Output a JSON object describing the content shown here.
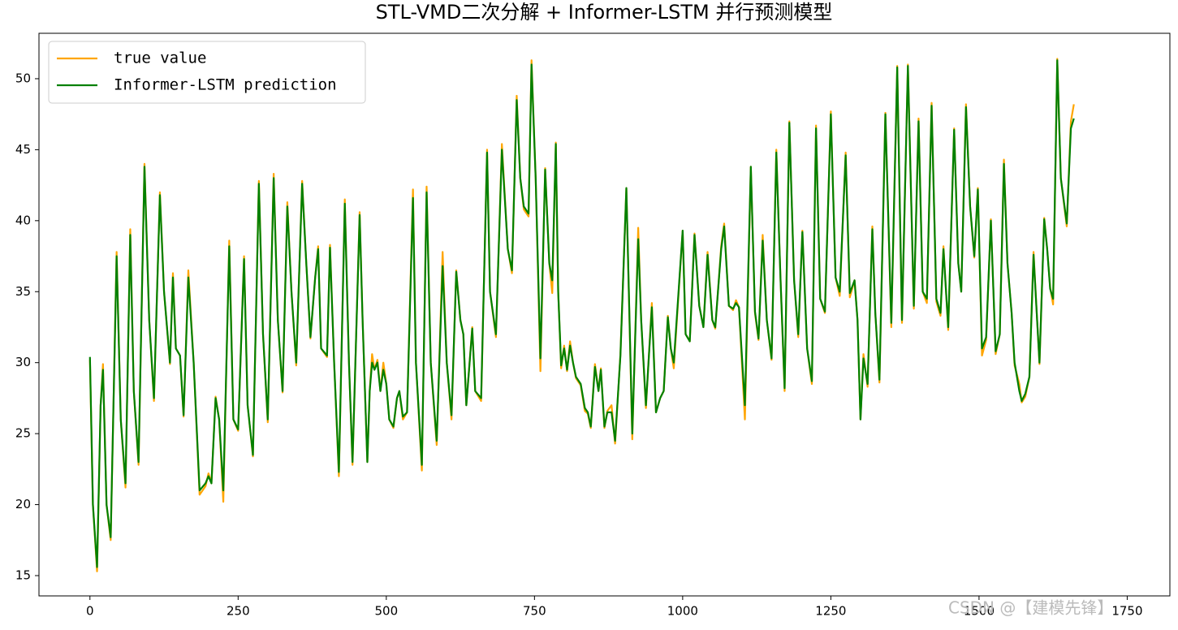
{
  "chart_data": {
    "type": "line",
    "title": "STL-VMD二次分解 + Informer-LSTM 并行预测模型",
    "x": [
      0,
      5,
      12,
      18,
      22,
      28,
      35,
      45,
      52,
      60,
      68,
      74,
      82,
      92,
      100,
      108,
      118,
      125,
      135,
      140,
      145,
      152,
      158,
      166,
      175,
      185,
      195,
      200,
      205,
      212,
      218,
      225,
      235,
      242,
      250,
      260,
      266,
      275,
      285,
      292,
      300,
      310,
      317,
      325,
      333,
      340,
      348,
      358,
      365,
      372,
      380,
      385,
      390,
      400,
      405,
      412,
      420,
      430,
      437,
      443,
      455,
      460,
      468,
      472,
      476,
      480,
      485,
      490,
      495,
      500,
      505,
      512,
      518,
      522,
      528,
      535,
      545,
      550,
      560,
      568,
      575,
      585,
      595,
      602,
      610,
      618,
      625,
      630,
      635,
      645,
      650,
      660,
      670,
      675,
      685,
      695,
      705,
      712,
      720,
      726,
      732,
      740,
      745,
      752,
      760,
      768,
      775,
      780,
      786,
      790,
      795,
      800,
      805,
      810,
      815,
      820,
      828,
      835,
      840,
      845,
      852,
      858,
      862,
      868,
      873,
      880,
      886,
      895,
      905,
      915,
      925,
      930,
      938,
      948,
      955,
      962,
      968,
      975,
      980,
      985,
      1000,
      1005,
      1012,
      1020,
      1028,
      1035,
      1042,
      1050,
      1055,
      1065,
      1070,
      1078,
      1085,
      1090,
      1095,
      1105,
      1115,
      1122,
      1128,
      1135,
      1142,
      1150,
      1158,
      1165,
      1172,
      1180,
      1188,
      1195,
      1202,
      1210,
      1218,
      1225,
      1232,
      1240,
      1250,
      1258,
      1265,
      1275,
      1282,
      1290,
      1295,
      1300,
      1305,
      1312,
      1320,
      1325,
      1332,
      1342,
      1352,
      1362,
      1370,
      1380,
      1390,
      1398,
      1405,
      1412,
      1420,
      1428,
      1435,
      1440,
      1448,
      1458,
      1465,
      1470,
      1478,
      1485,
      1492,
      1498,
      1505,
      1512,
      1520,
      1528,
      1535,
      1542,
      1548,
      1555,
      1560,
      1568,
      1572,
      1578,
      1585,
      1592,
      1598,
      1602,
      1610,
      1615,
      1620,
      1625,
      1632,
      1638,
      1648,
      1655,
      1660
    ],
    "series": [
      {
        "name": "true value",
        "color": "#ffa500",
        "values": [
          30.2,
          20,
          15.3,
          27,
          29.9,
          20,
          17.5,
          37.8,
          26,
          21.2,
          39.4,
          28,
          22.8,
          44,
          33,
          27.3,
          42,
          35,
          29.9,
          36.3,
          31,
          30.5,
          26.2,
          36.5,
          30,
          20.7,
          21.3,
          22.2,
          21.5,
          27.6,
          26,
          20.2,
          38.6,
          26,
          25.2,
          37.5,
          27,
          23.4,
          42.8,
          32,
          25.8,
          43.3,
          33,
          27.9,
          41.3,
          35,
          29.8,
          42.8,
          37,
          31.7,
          36,
          38.2,
          31,
          30.4,
          38.3,
          30,
          22,
          41.5,
          30,
          22.8,
          40.6,
          33,
          23,
          28,
          30.6,
          29.5,
          30.2,
          28,
          30,
          28.5,
          26,
          25.4,
          27.5,
          28,
          26,
          26.5,
          42.2,
          30,
          22.4,
          42.4,
          30,
          24.2,
          37.8,
          30,
          26,
          36.5,
          33,
          32,
          27,
          32.5,
          28,
          27.3,
          45,
          35,
          31.8,
          45.4,
          38,
          36.3,
          48.8,
          43,
          40.8,
          40.3,
          51.3,
          43,
          29.4,
          43.7,
          37,
          34.9,
          45.5,
          35,
          29.6,
          31.2,
          29.4,
          31.5,
          30,
          28.9,
          28.4,
          26.6,
          26.4,
          25.4,
          29.9,
          28,
          29.6,
          25.4,
          26.6,
          27,
          24.3,
          30.6,
          42.3,
          24.6,
          39.5,
          33,
          26.8,
          34.2,
          26.5,
          27.5,
          28,
          33.3,
          31,
          29.6,
          39.3,
          32,
          31.5,
          39.1,
          34,
          32.5,
          37.8,
          33,
          32.4,
          38.2,
          39.8,
          34,
          33.7,
          34.4,
          33.9,
          26,
          43.8,
          33.5,
          31.6,
          39,
          33,
          30.2,
          45,
          36,
          28,
          47,
          35.8,
          31.8,
          39.3,
          31,
          28.5,
          46.7,
          34.5,
          33.5,
          47.7,
          36,
          34.7,
          44.8,
          34.6,
          35.8,
          33,
          26,
          30.6,
          28.3,
          39.6,
          33.5,
          28.6,
          47.6,
          32.5,
          50.9,
          32.8,
          51,
          33.8,
          47.2,
          35,
          34.2,
          48.3,
          34.3,
          33.3,
          38.2,
          32.3,
          46.5,
          37,
          35,
          48.2,
          41,
          37.4,
          42.3,
          30.5,
          31.6,
          40.1,
          30.6,
          32,
          44.3,
          37,
          33.5,
          29.8,
          28.5,
          27.2,
          27.6,
          29,
          37.8,
          33,
          29.9,
          40.2,
          38,
          35.3,
          34.1,
          51.4,
          43,
          39.6,
          47,
          48.2
        ]
      },
      {
        "name": "Informer-LSTM prediction",
        "color": "#008000",
        "values": [
          30.4,
          20,
          15.6,
          27,
          29.5,
          20,
          17.7,
          37.5,
          26,
          21.5,
          39,
          28,
          23,
          43.8,
          33,
          27.5,
          41.8,
          35,
          30,
          36,
          31,
          30.5,
          26.3,
          36,
          30,
          21,
          21.5,
          22,
          21.5,
          27.5,
          26,
          21,
          38.2,
          26,
          25.3,
          37.3,
          27,
          23.5,
          42.6,
          32,
          26,
          43,
          33,
          28,
          41,
          35,
          30,
          42.6,
          37,
          31.8,
          36,
          38,
          31,
          30.5,
          38.1,
          30,
          22.3,
          41.2,
          30,
          23,
          40.4,
          33,
          23,
          28,
          30,
          29.5,
          30,
          28,
          29.5,
          28.5,
          26,
          25.5,
          27.5,
          28,
          26.2,
          26.5,
          41.6,
          30,
          22.8,
          42,
          30,
          24.5,
          36.8,
          30,
          26.3,
          36.4,
          33,
          32,
          27,
          32.4,
          28,
          27.5,
          44.8,
          35,
          32,
          45,
          38,
          36.5,
          48.5,
          43,
          41,
          40.5,
          51,
          43,
          30.3,
          43.6,
          37,
          35.8,
          45.4,
          35,
          29.8,
          31,
          29.5,
          31.2,
          30,
          29,
          28.5,
          26.8,
          26.5,
          25.5,
          29.7,
          28,
          29.5,
          25.5,
          26.5,
          26.5,
          24.5,
          30.5,
          42.3,
          25,
          38.7,
          33,
          27,
          33.9,
          26.5,
          27.5,
          28,
          33.2,
          31,
          30,
          39.3,
          32,
          31.5,
          39,
          34,
          32.5,
          37.6,
          33,
          32.5,
          38,
          39.6,
          34,
          33.8,
          34.2,
          33.9,
          27,
          43.8,
          33.6,
          31.7,
          38.6,
          33,
          30.3,
          44.8,
          36,
          28.2,
          46.9,
          35.8,
          32,
          39.2,
          31,
          28.7,
          46.5,
          34.5,
          33.6,
          47.5,
          36,
          35,
          44.6,
          34.9,
          35.8,
          33,
          26,
          30.3,
          28.5,
          39.4,
          33.5,
          28.8,
          47.5,
          32.8,
          50.8,
          33,
          50.9,
          34,
          47,
          35,
          34.5,
          48.1,
          34.5,
          33.5,
          38,
          32.5,
          46.4,
          37,
          35,
          48,
          41,
          37.5,
          42.2,
          31,
          31.8,
          40,
          30.8,
          32,
          44,
          37,
          33.5,
          30,
          28,
          27.3,
          27.8,
          29,
          37.6,
          33,
          30,
          40.1,
          38,
          35.2,
          34.5,
          51.3,
          43,
          39.8,
          46.5,
          47.2
        ]
      }
    ],
    "xlim": [
      -86,
      1822
    ],
    "ylim": [
      13.57,
      53.2
    ],
    "xticks": [
      0,
      250,
      500,
      750,
      1000,
      1250,
      1500,
      1750
    ],
    "yticks": [
      15,
      20,
      25,
      30,
      35,
      40,
      45,
      50
    ],
    "legend": "upper left"
  },
  "watermark": "CSDN @【建模先锋】"
}
